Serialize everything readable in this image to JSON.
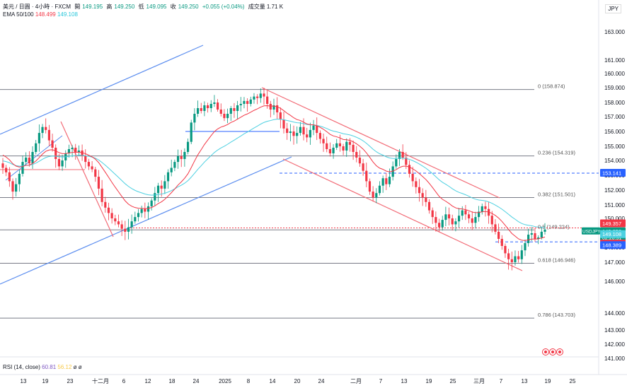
{
  "header": {
    "symbol": "美元 / 日圓 · 4小時 · FXCM",
    "open_label": "開",
    "open": "149.195",
    "high_label": "高",
    "high": "149.250",
    "low_label": "低",
    "low": "149.095",
    "close_label": "收",
    "close": "149.250",
    "change": "+0.055 (+0.04%)",
    "volume": "成交量 1.71 K",
    "ema_label": "EMA 50/100",
    "ema50": "148.499",
    "ema100": "149.108",
    "currency": "JPY"
  },
  "rsi": {
    "label": "RSI (14, close)",
    "value1": "60.81",
    "value2": "56.12",
    "zero1": "ø",
    "zero2": "ø"
  },
  "colors": {
    "up": "#089981",
    "down": "#f23645",
    "ema50": "#f23645",
    "ema100": "#4dd0e1",
    "trend_blue": "#2962ff",
    "trend_red": "#f23645",
    "fib": "#787b86",
    "dashed_blue": "#2962ff"
  },
  "chart_data": {
    "type": "candlestick",
    "title": "",
    "y_ticks": [
      "163.000",
      "161.000",
      "160.000",
      "159.000",
      "158.000",
      "157.000",
      "156.000",
      "155.000",
      "154.000",
      "153.000",
      "152.000",
      "151.000",
      "150.000",
      "149.000",
      "148.000",
      "147.000",
      "146.000",
      "144.000",
      "143.000",
      "142.000",
      "141.000"
    ],
    "x_ticks": [
      "13",
      "19",
      "23",
      "十二月",
      "6",
      "12",
      "18",
      "24",
      "2025",
      "8",
      "14",
      "20",
      "24",
      "二月",
      "7",
      "13",
      "19",
      "25",
      "三月",
      "7",
      "13",
      "19",
      "25"
    ],
    "fib_levels": [
      {
        "label": "0 (158.874)",
        "value": 158.874
      },
      {
        "label": "0.236 (154.319)",
        "value": 154.319
      },
      {
        "label": "0.382 (151.501)",
        "value": 151.501
      },
      {
        "label": "0.5 (149.224)",
        "value": 149.224
      },
      {
        "label": "0.618 (146.946)",
        "value": 146.946
      },
      {
        "label": "0.786 (143.703)",
        "value": 143.703
      }
    ],
    "price_tags": [
      {
        "label": "153.141",
        "value": 153.141,
        "color": "#2962ff"
      },
      {
        "label": "149.357",
        "value": 149.357,
        "color": "#f23645"
      },
      {
        "label": "USDJPY",
        "value": 149.25,
        "color": "#089981"
      },
      {
        "label": "149.250",
        "value": 149.25,
        "color": "#089981"
      },
      {
        "label": "02:26:31",
        "value": 149.25,
        "color": "#089981"
      },
      {
        "label": "149.108",
        "value": 149.108,
        "color": "#4dd0e1"
      },
      {
        "label": "148.499",
        "value": 148.499,
        "color": "#f23645"
      },
      {
        "label": "148.389",
        "value": 148.389,
        "color": "#2962ff"
      }
    ],
    "close_series": [
      153.5,
      153.2,
      152.6,
      151.9,
      152.4,
      153.1,
      153.9,
      154.2,
      153.8,
      154.6,
      155.2,
      155.9,
      156.3,
      156.1,
      155.4,
      154.9,
      154.1,
      153.6,
      154.0,
      154.5,
      154.8,
      154.9,
      154.6,
      154.7,
      154.3,
      153.9,
      153.6,
      153.4,
      152.9,
      152.1,
      151.2,
      150.8,
      150.4,
      150.0,
      149.8,
      149.6,
      149.3,
      149.1,
      149.4,
      149.8,
      150.1,
      150.4,
      150.7,
      150.5,
      150.9,
      151.3,
      151.8,
      152.3,
      152.1,
      152.6,
      153.2,
      153.5,
      153.9,
      154.3,
      154.1,
      154.6,
      155.3,
      156.6,
      157.2,
      157.6,
      157.4,
      157.8,
      157.6,
      157.9,
      158.0,
      157.5,
      157.2,
      156.9,
      157.2,
      157.6,
      157.4,
      157.8,
      157.9,
      158.1,
      157.9,
      158.2,
      158.4,
      158.3,
      158.6,
      158.4,
      157.9,
      157.5,
      157.8,
      157.3,
      156.8,
      156.2,
      155.9,
      156.0,
      155.7,
      155.9,
      156.3,
      155.8,
      155.6,
      156.1,
      156.4,
      155.9,
      155.5,
      155.2,
      154.8,
      154.5,
      154.9,
      155.2,
      155.0,
      154.7,
      155.3,
      155.1,
      154.6,
      154.2,
      153.8,
      153.3,
      152.6,
      151.9,
      151.5,
      151.8,
      152.3,
      152.8,
      152.4,
      152.9,
      153.6,
      154.1,
      154.6,
      154.2,
      153.7,
      153.1,
      152.6,
      152.2,
      151.8,
      151.5,
      151.2,
      150.6,
      150.1,
      149.7,
      149.4,
      149.9,
      150.3,
      150.0,
      149.6,
      149.8,
      150.2,
      150.6,
      150.3,
      150.0,
      149.7,
      150.1,
      150.5,
      150.9,
      150.7,
      150.2,
      149.6,
      149.1,
      148.6,
      148.1,
      147.6,
      147.2,
      147.0,
      147.4,
      147.2,
      147.8,
      148.3,
      148.9,
      149.0,
      148.6,
      148.7,
      149.1,
      149.25
    ]
  }
}
